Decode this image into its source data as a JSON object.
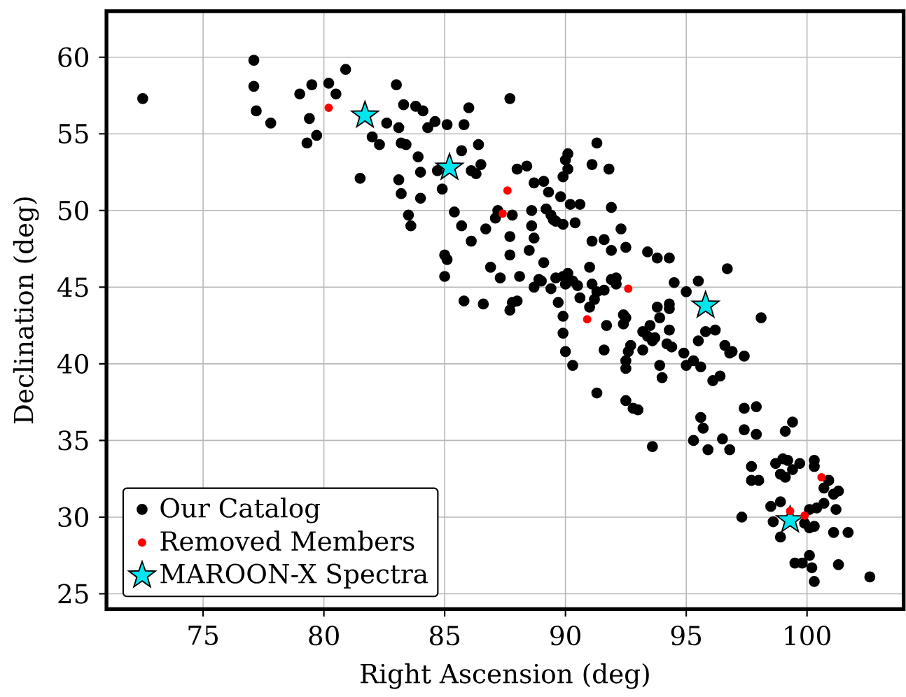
{
  "chart_data": {
    "type": "scatter",
    "xlabel": "Right Ascension (deg)",
    "ylabel": "Declination (deg)",
    "xlim": [
      71,
      104
    ],
    "ylim": [
      24,
      63
    ],
    "xticks": [
      75,
      80,
      85,
      90,
      95,
      100
    ],
    "yticks": [
      25,
      30,
      35,
      40,
      45,
      50,
      55,
      60
    ],
    "grid": true,
    "legend": "bottom left",
    "series": [
      {
        "name": "Our Catalog",
        "color": "#000000",
        "marker": "circle",
        "x": [
          72.5,
          77.1,
          77.1,
          77.2,
          77.8,
          79.0,
          79.5,
          79.4,
          79.7,
          79.3,
          80.2,
          80.5,
          80.9,
          82.0,
          82.3,
          81.5,
          83.0,
          83.3,
          83.8,
          84.1,
          82.6,
          83.1,
          83.2,
          83.4,
          84.3,
          84.6,
          85.1,
          85.8,
          86.0,
          87.7,
          83.9,
          85.7,
          86.4,
          84.0,
          84.7,
          86.1,
          86.3,
          86.5,
          83.1,
          83.2,
          84.0,
          84.9,
          83.5,
          83.6,
          88.0,
          88.4,
          88.7,
          89.1,
          89.3,
          89.8,
          90.0,
          90.1,
          89.9,
          85.4,
          85.7,
          86.1,
          86.7,
          87.2,
          87.1,
          87.8,
          87.7,
          88.6,
          88.6,
          88.7,
          89.2,
          89.4,
          89.5,
          89.9,
          90.4,
          90.2,
          90.6,
          85.0,
          85.1,
          85.0,
          87.7,
          88.5,
          89.1,
          86.9,
          87.3,
          88.1,
          88.7,
          89.0,
          89.4,
          89.6,
          89.9,
          90.1,
          90.3,
          90.5,
          90.0,
          85.8,
          86.6,
          87.8,
          88.0,
          87.7,
          89.7,
          89.9,
          89.9,
          90.6,
          91.3,
          91.1,
          91.8,
          90.1,
          91.9,
          89.6,
          92.3,
          91.1,
          91.6,
          91.9,
          92.5,
          91.0,
          93.4,
          93.8,
          94.3,
          96.7,
          95.5,
          94.5,
          95.0,
          98.1,
          88.9,
          91.1,
          91.3,
          91.6,
          91.9,
          92.1,
          92.1,
          91.0,
          91.2,
          90.0,
          90.3,
          91.6,
          91.7,
          92.4,
          92.5,
          92.4,
          92.7,
          92.6,
          92.5,
          92.5,
          93.2,
          93.4,
          93.5,
          93.6,
          93.7,
          93.2,
          93.8,
          93.9,
          94.3,
          94.3,
          94.3,
          94.2,
          94.4,
          94.9,
          93.9,
          94.0,
          95.0,
          95.3,
          95.6,
          95.5,
          95.8,
          96.2,
          96.1,
          96.4,
          96.6,
          96.8,
          96.9,
          97.4,
          91.3,
          92.5,
          92.8,
          93.0,
          93.6,
          95.6,
          95.7,
          95.3,
          95.9,
          96.5,
          96.8,
          97.4,
          97.9,
          97.4,
          97.9,
          99.4,
          99.1,
          97.3,
          97.7,
          97.7,
          98.0,
          98.7,
          99.0,
          99.2,
          99.7,
          98.9,
          99.1,
          99.4,
          100.3,
          100.3,
          100.9,
          100.7,
          101.1,
          101.3,
          98.5,
          98.9,
          98.6,
          98.9,
          100.1,
          100.4,
          100.7,
          101.2,
          100.1,
          100.3,
          99.9,
          101.1,
          101.7,
          99.5,
          99.8,
          100.1,
          100.2,
          100.3,
          101.3,
          102.6
        ],
        "values": [
          57.3,
          59.8,
          58.1,
          56.5,
          55.7,
          57.6,
          58.2,
          56.0,
          54.9,
          54.4,
          58.3,
          57.6,
          59.2,
          54.8,
          54.3,
          52.1,
          58.2,
          56.9,
          56.8,
          56.5,
          55.7,
          55.4,
          54.4,
          54.3,
          55.4,
          55.8,
          55.6,
          55.6,
          56.7,
          57.3,
          53.5,
          53.9,
          54.3,
          52.5,
          52.6,
          52.6,
          52.4,
          53.0,
          52.0,
          51.1,
          50.8,
          51.4,
          49.7,
          49.0,
          52.7,
          52.9,
          51.8,
          51.9,
          51.2,
          50.9,
          53.3,
          53.7,
          52.2,
          49.9,
          49.0,
          48.0,
          48.8,
          50.0,
          49.5,
          49.7,
          48.3,
          50.0,
          49.0,
          48.2,
          50.1,
          49.7,
          49.4,
          49.1,
          49.2,
          50.4,
          50.4,
          47.1,
          46.8,
          45.7,
          47.1,
          47.4,
          46.6,
          46.3,
          45.6,
          45.7,
          45.0,
          45.4,
          44.9,
          45.6,
          45.7,
          45.9,
          45.4,
          45.1,
          45.2,
          44.1,
          43.9,
          44.0,
          44.1,
          43.5,
          44.0,
          43.1,
          42.0,
          44.3,
          54.4,
          53.0,
          52.7,
          52.7,
          50.2,
          49.3,
          48.8,
          48.0,
          48.1,
          47.4,
          47.6,
          46.3,
          47.3,
          46.9,
          46.9,
          46.2,
          45.4,
          45.3,
          44.7,
          43.0,
          45.5,
          45.2,
          44.7,
          44.8,
          45.5,
          45.6,
          45.2,
          43.7,
          44.2,
          40.8,
          39.9,
          40.9,
          42.5,
          43.2,
          43.0,
          42.6,
          41.2,
          40.8,
          40.2,
          39.7,
          42.1,
          41.8,
          42.5,
          41.5,
          41.7,
          40.9,
          43.7,
          43.0,
          43.9,
          43.6,
          42.2,
          41.3,
          41.1,
          40.7,
          39.9,
          39.1,
          39.9,
          40.2,
          39.8,
          41.5,
          42.1,
          42.2,
          38.9,
          39.2,
          41.2,
          40.7,
          40.8,
          40.5,
          38.1,
          37.6,
          37.1,
          37.0,
          34.6,
          36.5,
          35.8,
          35.0,
          34.4,
          35.1,
          34.4,
          37.1,
          37.2,
          35.7,
          35.4,
          36.2,
          35.6,
          30.0,
          33.3,
          32.4,
          32.4,
          33.5,
          33.8,
          33.7,
          33.5,
          32.8,
          32.6,
          33.1,
          33.7,
          33.3,
          32.4,
          31.9,
          31.5,
          31.7,
          30.7,
          31.0,
          29.7,
          28.7,
          30.5,
          30.6,
          30.9,
          30.5,
          29.3,
          29.4,
          29.6,
          29.0,
          29.0,
          27.0,
          27.0,
          27.5,
          26.7,
          25.8,
          26.9,
          26.1
        ]
      },
      {
        "name": "Removed Members",
        "color": "#ff0000",
        "marker": "circle",
        "x": [
          80.2,
          87.6,
          87.4,
          90.9,
          92.6,
          100.6,
          99.3,
          99.9
        ],
        "values": [
          56.7,
          51.3,
          49.8,
          42.9,
          44.9,
          32.6,
          30.4,
          30.1
        ]
      },
      {
        "name": "MAROON-X Spectra",
        "color": "#00e5ee",
        "marker": "star",
        "x": [
          81.7,
          85.2,
          95.8,
          99.3
        ],
        "values": [
          56.2,
          52.8,
          43.8,
          29.8
        ]
      }
    ]
  }
}
